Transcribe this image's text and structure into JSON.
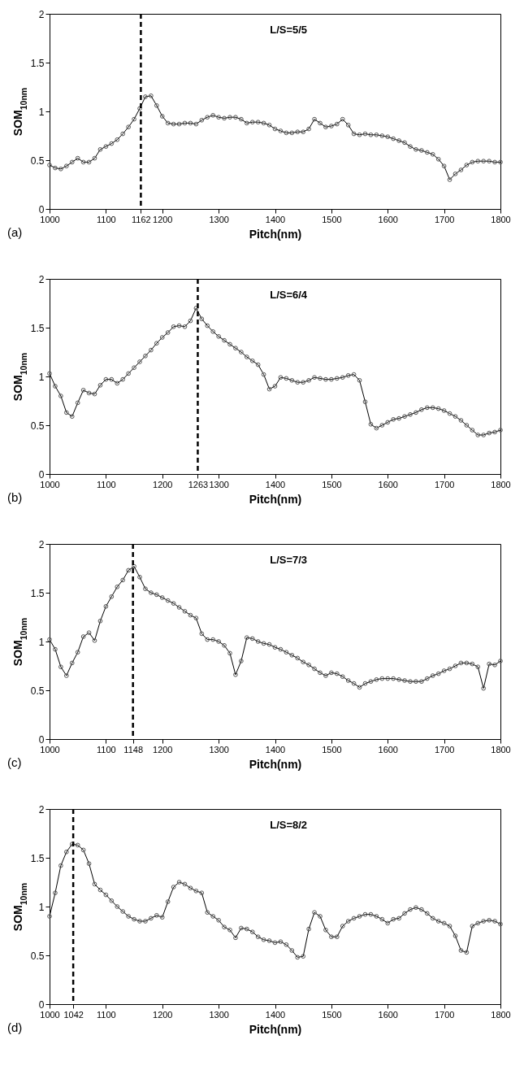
{
  "chart_data": [
    {
      "type": "line",
      "title": "L/S=5/5",
      "xlabel": "Pitch(nm)",
      "ylabel": "SOM$_{10nm}$",
      "annotations": [
        "(a)"
      ],
      "marker": "circle",
      "x": [
        1000,
        1010,
        1020,
        1030,
        1040,
        1050,
        1060,
        1070,
        1080,
        1090,
        1100,
        1110,
        1120,
        1130,
        1140,
        1150,
        1160,
        1170,
        1180,
        1190,
        1200,
        1210,
        1220,
        1230,
        1240,
        1250,
        1260,
        1270,
        1280,
        1290,
        1300,
        1310,
        1320,
        1330,
        1340,
        1350,
        1360,
        1370,
        1380,
        1390,
        1400,
        1410,
        1420,
        1430,
        1440,
        1450,
        1460,
        1470,
        1480,
        1490,
        1500,
        1510,
        1520,
        1530,
        1540,
        1550,
        1560,
        1570,
        1580,
        1590,
        1600,
        1610,
        1620,
        1630,
        1640,
        1650,
        1660,
        1670,
        1680,
        1690,
        1700,
        1710,
        1720,
        1730,
        1740,
        1750,
        1760,
        1770,
        1780,
        1790,
        1800
      ],
      "series": [
        {
          "color": "#000000",
          "values": [
            0.45,
            0.42,
            0.41,
            0.44,
            0.48,
            0.52,
            0.48,
            0.48,
            0.52,
            0.61,
            0.64,
            0.67,
            0.71,
            0.77,
            0.84,
            0.92,
            1.03,
            1.15,
            1.16,
            1.06,
            0.95,
            0.88,
            0.87,
            0.87,
            0.88,
            0.88,
            0.87,
            0.91,
            0.94,
            0.96,
            0.94,
            0.93,
            0.94,
            0.94,
            0.92,
            0.88,
            0.89,
            0.89,
            0.88,
            0.86,
            0.82,
            0.8,
            0.78,
            0.78,
            0.79,
            0.79,
            0.82,
            0.92,
            0.88,
            0.84,
            0.85,
            0.87,
            0.92,
            0.86,
            0.77,
            0.76,
            0.77,
            0.76,
            0.76,
            0.75,
            0.74,
            0.72,
            0.7,
            0.68,
            0.64,
            0.61,
            0.6,
            0.58,
            0.56,
            0.51,
            0.44,
            0.3,
            0.36,
            0.4,
            0.45,
            0.48,
            0.49,
            0.49,
            0.49,
            0.48,
            0.48
          ]
        }
      ],
      "xlim": [
        1000,
        1800
      ],
      "ylim": [
        0,
        2
      ],
      "xticks": [
        1000,
        1100,
        1162,
        1200,
        1300,
        1400,
        1500,
        1600,
        1700,
        1800
      ],
      "yticks": [
        0,
        0.5,
        1,
        1.5,
        2
      ],
      "ref_lines": [
        {
          "axis": "x",
          "value": 1162,
          "color": "#000000",
          "line_style": "dashed"
        }
      ]
    },
    {
      "type": "line",
      "title": "L/S=6/4",
      "xlabel": "Pitch(nm)",
      "ylabel": "SOM$_{10nm}$",
      "annotations": [
        "(b)"
      ],
      "marker": "circle",
      "x": [
        1000,
        1010,
        1020,
        1030,
        1040,
        1050,
        1060,
        1070,
        1080,
        1090,
        1100,
        1110,
        1120,
        1130,
        1140,
        1150,
        1160,
        1170,
        1180,
        1190,
        1200,
        1210,
        1220,
        1230,
        1240,
        1250,
        1260,
        1270,
        1280,
        1290,
        1300,
        1310,
        1320,
        1330,
        1340,
        1350,
        1360,
        1370,
        1380,
        1390,
        1400,
        1410,
        1420,
        1430,
        1440,
        1450,
        1460,
        1470,
        1480,
        1490,
        1500,
        1510,
        1520,
        1530,
        1540,
        1550,
        1560,
        1570,
        1580,
        1590,
        1600,
        1610,
        1620,
        1630,
        1640,
        1650,
        1660,
        1670,
        1680,
        1690,
        1700,
        1710,
        1720,
        1730,
        1740,
        1750,
        1760,
        1770,
        1780,
        1790,
        1800
      ],
      "series": [
        {
          "color": "#000000",
          "values": [
            1.03,
            0.9,
            0.8,
            0.63,
            0.59,
            0.73,
            0.86,
            0.83,
            0.82,
            0.91,
            0.97,
            0.97,
            0.93,
            0.97,
            1.03,
            1.09,
            1.15,
            1.21,
            1.27,
            1.34,
            1.4,
            1.45,
            1.51,
            1.52,
            1.51,
            1.57,
            1.7,
            1.59,
            1.52,
            1.46,
            1.41,
            1.37,
            1.33,
            1.29,
            1.25,
            1.2,
            1.16,
            1.12,
            1.02,
            0.87,
            0.9,
            0.99,
            0.98,
            0.96,
            0.94,
            0.94,
            0.96,
            0.99,
            0.98,
            0.97,
            0.97,
            0.98,
            0.99,
            1.01,
            1.02,
            0.96,
            0.74,
            0.51,
            0.47,
            0.5,
            0.53,
            0.56,
            0.57,
            0.59,
            0.61,
            0.63,
            0.66,
            0.68,
            0.68,
            0.67,
            0.65,
            0.62,
            0.59,
            0.55,
            0.5,
            0.45,
            0.4,
            0.4,
            0.42,
            0.43,
            0.45
          ]
        }
      ],
      "xlim": [
        1000,
        1800
      ],
      "ylim": [
        0,
        2
      ],
      "xticks": [
        1000,
        1100,
        1200,
        1263,
        1300,
        1400,
        1500,
        1600,
        1700,
        1800
      ],
      "yticks": [
        0,
        0.5,
        1,
        1.5,
        2
      ],
      "ref_lines": [
        {
          "axis": "x",
          "value": 1263,
          "color": "#000000",
          "line_style": "dashed"
        }
      ]
    },
    {
      "type": "line",
      "title": "L/S=7/3",
      "xlabel": "Pitch(nm)",
      "ylabel": "SOM$_{10nm}$",
      "annotations": [
        "(c)"
      ],
      "marker": "circle",
      "x": [
        1000,
        1010,
        1020,
        1030,
        1040,
        1050,
        1060,
        1070,
        1080,
        1090,
        1100,
        1110,
        1120,
        1130,
        1140,
        1150,
        1160,
        1170,
        1180,
        1190,
        1200,
        1210,
        1220,
        1230,
        1240,
        1250,
        1260,
        1270,
        1280,
        1290,
        1300,
        1310,
        1320,
        1330,
        1340,
        1350,
        1360,
        1370,
        1380,
        1390,
        1400,
        1410,
        1420,
        1430,
        1440,
        1450,
        1460,
        1470,
        1480,
        1490,
        1500,
        1510,
        1520,
        1530,
        1540,
        1550,
        1560,
        1570,
        1580,
        1590,
        1600,
        1610,
        1620,
        1630,
        1640,
        1650,
        1660,
        1670,
        1680,
        1690,
        1700,
        1710,
        1720,
        1730,
        1740,
        1750,
        1760,
        1770,
        1780,
        1790,
        1800
      ],
      "series": [
        {
          "color": "#000000",
          "values": [
            1.02,
            0.92,
            0.74,
            0.65,
            0.78,
            0.89,
            1.05,
            1.09,
            1.01,
            1.21,
            1.36,
            1.46,
            1.56,
            1.63,
            1.73,
            1.77,
            1.66,
            1.54,
            1.5,
            1.48,
            1.45,
            1.42,
            1.39,
            1.35,
            1.31,
            1.27,
            1.24,
            1.08,
            1.02,
            1.02,
            1.0,
            0.96,
            0.88,
            0.66,
            0.8,
            1.04,
            1.03,
            1.0,
            0.98,
            0.97,
            0.94,
            0.92,
            0.89,
            0.86,
            0.83,
            0.79,
            0.76,
            0.72,
            0.68,
            0.65,
            0.68,
            0.67,
            0.64,
            0.6,
            0.57,
            0.53,
            0.57,
            0.59,
            0.61,
            0.62,
            0.62,
            0.62,
            0.61,
            0.6,
            0.59,
            0.59,
            0.59,
            0.62,
            0.65,
            0.67,
            0.7,
            0.72,
            0.75,
            0.78,
            0.78,
            0.77,
            0.74,
            0.52,
            0.77,
            0.76,
            0.8
          ]
        }
      ],
      "xlim": [
        1000,
        1800
      ],
      "ylim": [
        0,
        2
      ],
      "xticks": [
        1000,
        1100,
        1148,
        1200,
        1300,
        1400,
        1500,
        1600,
        1700,
        1800
      ],
      "yticks": [
        0,
        0.5,
        1,
        1.5,
        2
      ],
      "ref_lines": [
        {
          "axis": "x",
          "value": 1148,
          "color": "#000000",
          "line_style": "dashed"
        }
      ]
    },
    {
      "type": "line",
      "title": "L/S=8/2",
      "xlabel": "Pitch(nm)",
      "ylabel": "SOM$_{10nm}$",
      "annotations": [
        "(d)"
      ],
      "marker": "circle",
      "x": [
        1000,
        1010,
        1020,
        1030,
        1040,
        1050,
        1060,
        1070,
        1080,
        1090,
        1100,
        1110,
        1120,
        1130,
        1140,
        1150,
        1160,
        1170,
        1180,
        1190,
        1200,
        1210,
        1220,
        1230,
        1240,
        1250,
        1260,
        1270,
        1280,
        1290,
        1300,
        1310,
        1320,
        1330,
        1340,
        1350,
        1360,
        1370,
        1380,
        1390,
        1400,
        1410,
        1420,
        1430,
        1440,
        1450,
        1460,
        1470,
        1480,
        1490,
        1500,
        1510,
        1520,
        1530,
        1540,
        1550,
        1560,
        1570,
        1580,
        1590,
        1600,
        1610,
        1620,
        1630,
        1640,
        1650,
        1660,
        1670,
        1680,
        1690,
        1700,
        1710,
        1720,
        1730,
        1740,
        1750,
        1760,
        1770,
        1780,
        1790,
        1800
      ],
      "series": [
        {
          "color": "#000000",
          "values": [
            0.9,
            1.14,
            1.42,
            1.56,
            1.64,
            1.63,
            1.58,
            1.44,
            1.23,
            1.17,
            1.12,
            1.06,
            1.0,
            0.95,
            0.9,
            0.87,
            0.85,
            0.85,
            0.88,
            0.91,
            0.89,
            1.05,
            1.2,
            1.25,
            1.23,
            1.19,
            1.16,
            1.14,
            0.94,
            0.9,
            0.86,
            0.79,
            0.76,
            0.68,
            0.78,
            0.77,
            0.74,
            0.69,
            0.66,
            0.65,
            0.63,
            0.64,
            0.61,
            0.55,
            0.48,
            0.49,
            0.77,
            0.94,
            0.9,
            0.76,
            0.69,
            0.69,
            0.8,
            0.85,
            0.88,
            0.9,
            0.92,
            0.92,
            0.9,
            0.87,
            0.83,
            0.87,
            0.88,
            0.93,
            0.97,
            0.99,
            0.97,
            0.93,
            0.88,
            0.85,
            0.83,
            0.8,
            0.7,
            0.55,
            0.53,
            0.8,
            0.83,
            0.85,
            0.86,
            0.85,
            0.82
          ]
        }
      ],
      "xlim": [
        1000,
        1800
      ],
      "ylim": [
        0,
        2
      ],
      "xticks": [
        1000,
        1042,
        1100,
        1200,
        1300,
        1400,
        1500,
        1600,
        1700,
        1800
      ],
      "yticks": [
        0,
        0.5,
        1,
        1.5,
        2
      ],
      "ref_lines": [
        {
          "axis": "x",
          "value": 1042,
          "color": "#000000",
          "line_style": "dashed"
        }
      ]
    }
  ]
}
